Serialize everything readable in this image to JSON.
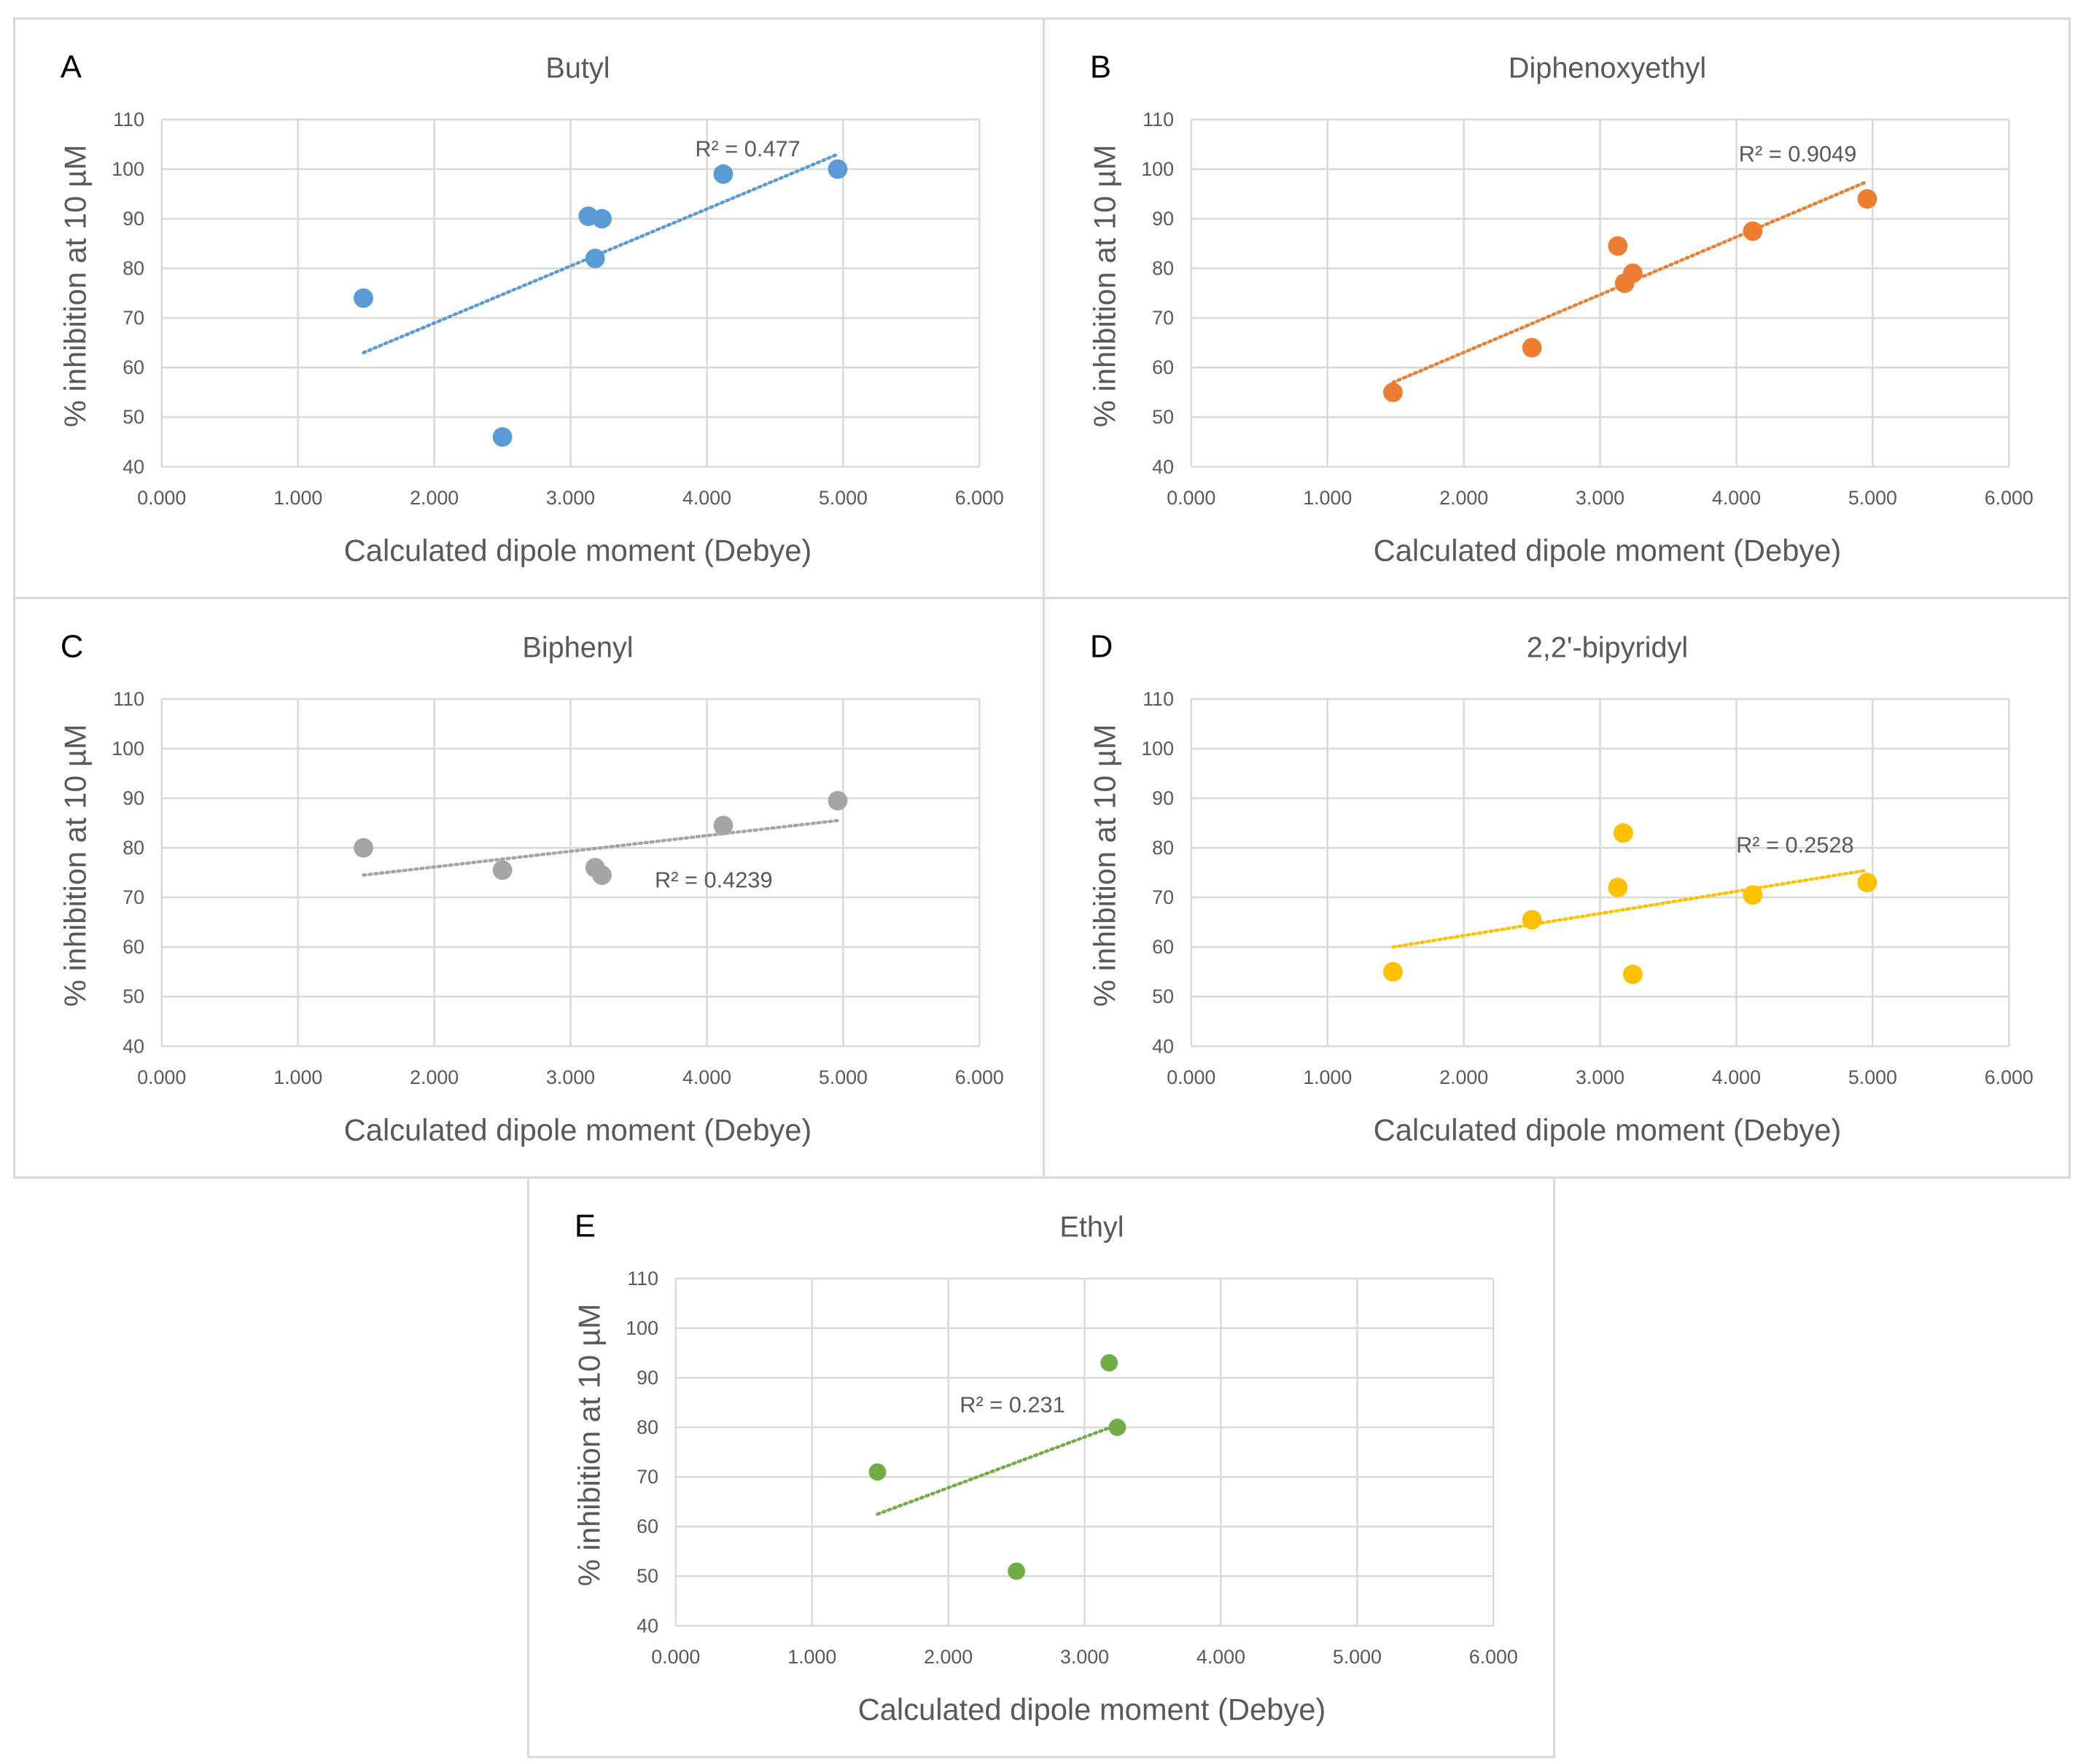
{
  "chart_data": [
    {
      "type": "scatter",
      "panel_letter": "A",
      "title": "Butyl",
      "xlabel": "Calculated dipole moment (Debye)",
      "ylabel": "% inhibition at 10 µM",
      "xlim": [
        0,
        6
      ],
      "ylim": [
        40,
        110
      ],
      "x_ticks": [
        "0.000",
        "1.000",
        "2.000",
        "3.000",
        "4.000",
        "5.000",
        "6.000"
      ],
      "y_ticks": [
        "40",
        "50",
        "60",
        "70",
        "80",
        "90",
        "100",
        "110"
      ],
      "color": "#5b9bd5",
      "points": [
        [
          1.48,
          74
        ],
        [
          2.5,
          46
        ],
        [
          3.13,
          90.5
        ],
        [
          3.18,
          82
        ],
        [
          3.23,
          90
        ],
        [
          4.12,
          99
        ],
        [
          4.96,
          100
        ]
      ],
      "trendline": {
        "x": [
          1.48,
          4.96
        ],
        "y": [
          63,
          103
        ]
      },
      "r2_label": "R² = 0.477",
      "r2_anchor": [
        4.3,
        104
      ]
    },
    {
      "type": "scatter",
      "panel_letter": "B",
      "title": "Diphenoxyethyl",
      "xlabel": "Calculated dipole moment (Debye)",
      "ylabel": "% inhibition at 10 µM",
      "xlim": [
        0,
        6
      ],
      "ylim": [
        40,
        110
      ],
      "x_ticks": [
        "0.000",
        "1.000",
        "2.000",
        "3.000",
        "4.000",
        "5.000",
        "6.000"
      ],
      "y_ticks": [
        "40",
        "50",
        "60",
        "70",
        "80",
        "90",
        "100",
        "110"
      ],
      "color": "#ed7d31",
      "points": [
        [
          1.48,
          55
        ],
        [
          2.5,
          64
        ],
        [
          3.13,
          84.5
        ],
        [
          3.18,
          77
        ],
        [
          3.24,
          79
        ],
        [
          4.12,
          87.5
        ],
        [
          4.96,
          94
        ]
      ],
      "trendline": {
        "x": [
          1.48,
          4.96
        ],
        "y": [
          57,
          97.5
        ]
      },
      "r2_label": "R² = 0.9049",
      "r2_anchor": [
        4.45,
        103
      ]
    },
    {
      "type": "scatter",
      "panel_letter": "C",
      "title": "Biphenyl",
      "xlabel": "Calculated dipole moment (Debye)",
      "ylabel": "% inhibition at 10 µM",
      "xlim": [
        0,
        6
      ],
      "ylim": [
        40,
        110
      ],
      "x_ticks": [
        "0.000",
        "1.000",
        "2.000",
        "3.000",
        "4.000",
        "5.000",
        "6.000"
      ],
      "y_ticks": [
        "40",
        "50",
        "60",
        "70",
        "80",
        "90",
        "100",
        "110"
      ],
      "color": "#a5a5a5",
      "points": [
        [
          1.48,
          80
        ],
        [
          2.5,
          75.5
        ],
        [
          3.18,
          76
        ],
        [
          3.23,
          74.5
        ],
        [
          4.12,
          84.5
        ],
        [
          4.96,
          89.5
        ]
      ],
      "trendline": {
        "x": [
          1.48,
          4.96
        ],
        "y": [
          74.5,
          85.5
        ]
      },
      "r2_label": "R² = 0.4239",
      "r2_anchor": [
        4.05,
        73.5
      ]
    },
    {
      "type": "scatter",
      "panel_letter": "D",
      "title": "2,2'-bipyridyl",
      "xlabel": "Calculated dipole moment (Debye)",
      "ylabel": "% inhibition at 10 µM",
      "xlim": [
        0,
        6
      ],
      "ylim": [
        40,
        110
      ],
      "x_ticks": [
        "0.000",
        "1.000",
        "2.000",
        "3.000",
        "4.000",
        "5.000",
        "6.000"
      ],
      "y_ticks": [
        "40",
        "50",
        "60",
        "70",
        "80",
        "90",
        "100",
        "110"
      ],
      "color": "#ffc000",
      "points": [
        [
          1.48,
          55
        ],
        [
          2.5,
          65.5
        ],
        [
          3.13,
          72
        ],
        [
          3.17,
          83
        ],
        [
          3.24,
          54.5
        ],
        [
          4.12,
          70.5
        ],
        [
          4.96,
          73
        ]
      ],
      "trendline": {
        "x": [
          1.48,
          4.96
        ],
        "y": [
          60,
          75.5
        ]
      },
      "r2_label": "R² = 0.2528",
      "r2_anchor": [
        4.43,
        80.5
      ]
    },
    {
      "type": "scatter",
      "panel_letter": "E",
      "title": "Ethyl",
      "xlabel": "Calculated dipole moment (Debye)",
      "ylabel": "% inhibition at 10 µM",
      "xlim": [
        0,
        6
      ],
      "ylim": [
        40,
        110
      ],
      "x_ticks": [
        "0.000",
        "1.000",
        "2.000",
        "3.000",
        "4.000",
        "5.000",
        "6.000"
      ],
      "y_ticks": [
        "40",
        "50",
        "60",
        "70",
        "80",
        "90",
        "100",
        "110"
      ],
      "color": "#70ad47",
      "points": [
        [
          1.48,
          71
        ],
        [
          2.5,
          51
        ],
        [
          3.18,
          93
        ],
        [
          3.24,
          80
        ]
      ],
      "trendline": {
        "x": [
          1.48,
          3.24
        ],
        "y": [
          62.5,
          80.5
        ]
      },
      "r2_label": "R² = 0.231",
      "r2_anchor": [
        2.47,
        84.5
      ]
    }
  ]
}
